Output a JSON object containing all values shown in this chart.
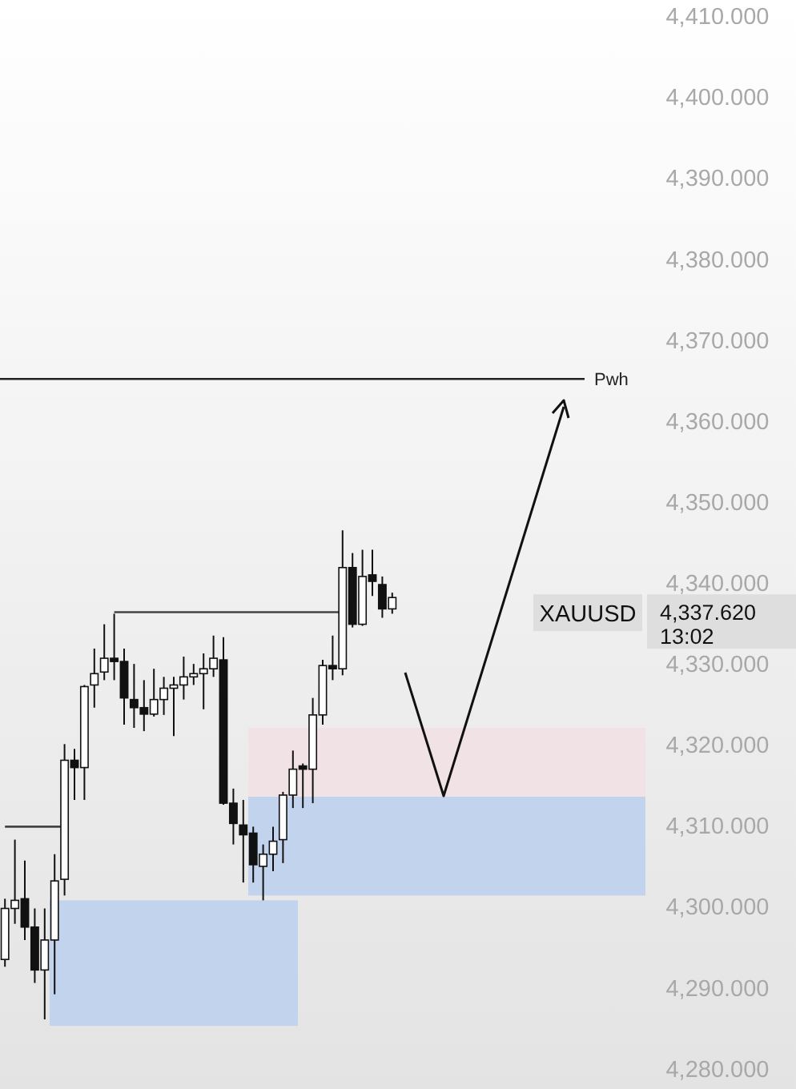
{
  "chart_data": {
    "type": "candlestick",
    "categories": [
      null,
      null,
      null,
      null,
      null,
      null,
      null,
      null,
      null,
      null,
      null,
      null,
      null,
      null,
      null,
      null,
      null,
      null,
      null,
      null,
      null,
      null,
      null,
      null,
      null,
      null,
      null,
      null,
      null,
      null,
      null,
      null,
      null,
      null,
      null,
      null,
      null,
      null,
      null,
      null,
      null,
      null,
      null,
      null,
      null,
      null,
      null,
      null,
      null,
      null,
      null,
      null,
      null,
      null,
      null,
      null,
      null,
      null,
      null,
      null,
      null,
      null,
      null,
      null,
      null
    ],
    "ohlc": [
      [
        4293.5,
        4301.0,
        4292.6,
        4299.8
      ],
      [
        4299.8,
        4308.3,
        4297.9,
        4300.8
      ],
      [
        4301.0,
        4305.7,
        4295.9,
        4297.5
      ],
      [
        4297.5,
        4299.8,
        4290.6,
        4292.2
      ],
      [
        4292.2,
        4299.8,
        4286.1,
        4295.9
      ],
      [
        4295.9,
        4306.5,
        4289.2,
        4303.2
      ],
      [
        4303.4,
        4320.1,
        4301.4,
        4318.1
      ],
      [
        4318.1,
        4319.5,
        4313.2,
        4317.2
      ],
      [
        4317.2,
        4327.4,
        4313.2,
        4327.2
      ],
      [
        4327.4,
        4331.9,
        4324.6,
        4328.8
      ],
      [
        4329.0,
        4334.9,
        4328.0,
        4330.7
      ],
      [
        4330.7,
        4336.2,
        4328.0,
        4330.3
      ],
      [
        4330.3,
        4331.9,
        4322.5,
        4325.8
      ],
      [
        4325.6,
        4330.0,
        4322.1,
        4324.6
      ],
      [
        4324.6,
        4328.0,
        4321.7,
        4323.8
      ],
      [
        4323.8,
        4329.4,
        4323.5,
        4325.6
      ],
      [
        4325.6,
        4328.4,
        4323.7,
        4327.0
      ],
      [
        4327.0,
        4328.4,
        4321.1,
        4327.4
      ],
      [
        4327.4,
        4330.9,
        4325.6,
        4328.4
      ],
      [
        4328.4,
        4330.0,
        4327.4,
        4328.8
      ],
      [
        4328.8,
        4331.3,
        4324.4,
        4329.4
      ],
      [
        4329.4,
        4333.5,
        4328.4,
        4330.7
      ],
      [
        4330.5,
        4333.3,
        4312.6,
        4312.8
      ],
      [
        4312.8,
        4314.6,
        4307.7,
        4310.3
      ],
      [
        4310.1,
        4313.2,
        4303.0,
        4308.9
      ],
      [
        4309.1,
        4309.9,
        4303.0,
        4305.2
      ],
      [
        4305.0,
        4307.7,
        4300.8,
        4306.5
      ],
      [
        4306.5,
        4309.9,
        4304.4,
        4308.1
      ],
      [
        4308.3,
        4314.2,
        4305.4,
        4313.8
      ],
      [
        4313.8,
        4319.3,
        4312.2,
        4317.0
      ],
      [
        4317.4,
        4317.7,
        4312.2,
        4317.0
      ],
      [
        4317.0,
        4325.8,
        4312.8,
        4323.7
      ],
      [
        4323.7,
        4330.5,
        4322.5,
        4329.8
      ],
      [
        4329.8,
        4333.5,
        4328.0,
        4329.4
      ],
      [
        4329.4,
        4346.5,
        4328.6,
        4341.9
      ],
      [
        4341.9,
        4343.7,
        4334.5,
        4334.9
      ],
      [
        4334.9,
        4344.1,
        4334.7,
        4340.8
      ],
      [
        4341.0,
        4344.1,
        4338.4,
        4340.2
      ],
      [
        4339.8,
        4340.8,
        4335.7,
        4336.8
      ],
      [
        4336.8,
        4338.8,
        4336.2,
        4338.2
      ],
      null,
      null,
      null,
      null,
      null,
      null,
      null,
      null,
      null,
      null,
      null,
      null,
      null,
      null,
      null,
      null,
      null,
      null,
      null,
      null,
      null,
      null,
      null,
      null,
      null
    ],
    "series": [
      {
        "type": "line",
        "color": "#444444",
        "values": [
          4309.9,
          4309.9,
          4309.9,
          4309.9,
          4309.9,
          4309.9,
          4309.9,
          null,
          null,
          null,
          null,
          null,
          null,
          null,
          null,
          null,
          null,
          null,
          null,
          null,
          null,
          null,
          null,
          null,
          null,
          null,
          null,
          null,
          null,
          null,
          null,
          null,
          null,
          null,
          null,
          null,
          null,
          null,
          null,
          null,
          null,
          null,
          null,
          null,
          null,
          null,
          null,
          null,
          null,
          null,
          null,
          null,
          null,
          null,
          null,
          null,
          null,
          null,
          null,
          null,
          null,
          null,
          null,
          null,
          null
        ]
      },
      {
        "type": "line",
        "color": "#444444",
        "values": [
          null,
          null,
          null,
          null,
          null,
          null,
          null,
          null,
          null,
          null,
          null,
          4336.4,
          4336.4,
          4336.4,
          4336.4,
          4336.4,
          4336.4,
          4336.4,
          4336.4,
          4336.4,
          4336.4,
          4336.4,
          4336.4,
          4336.4,
          4336.4,
          4336.4,
          4336.4,
          4336.4,
          4336.4,
          4336.4,
          4336.4,
          4336.4,
          4336.4,
          4336.4,
          4336.4,
          null,
          null,
          null,
          null,
          null,
          null,
          null,
          null,
          null,
          null,
          null,
          null,
          null,
          null,
          null,
          null,
          null,
          null,
          null,
          null,
          null,
          null,
          null,
          null,
          null,
          null,
          null,
          null,
          null,
          null
        ]
      }
    ],
    "ylim": [
      4277.5,
      4412
    ],
    "yticks": [
      {
        "value": 4280,
        "label": "4,280.000"
      },
      {
        "value": 4290,
        "label": "4,290.000"
      },
      {
        "value": 4300,
        "label": "4,300.000"
      },
      {
        "value": 4310,
        "label": "4,310.000"
      },
      {
        "value": 4320,
        "label": "4,320.000"
      },
      {
        "value": 4330,
        "label": "4,330.000"
      },
      {
        "value": 4340,
        "label": "4,340.000"
      },
      {
        "value": 4350,
        "label": "4,350.000"
      },
      {
        "value": 4360,
        "label": "4,360.000"
      },
      {
        "value": 4370,
        "label": "4,370.000"
      },
      {
        "value": 4380,
        "label": "4,380.000"
      },
      {
        "value": 4390,
        "label": "4,390.000"
      },
      {
        "value": 4400,
        "label": "4,400.000"
      },
      {
        "value": 4410,
        "label": "4,410.000"
      }
    ],
    "ref_lines": [
      {
        "axis": "y",
        "value": 4365.2,
        "label": "Pwh",
        "color": "#222222"
      }
    ],
    "bands": [
      {
        "axis": "y",
        "from": 4285.3,
        "to": 4300.8,
        "color": "#c2d3ee"
      },
      {
        "axis": "y",
        "from": 4301.4,
        "to": 4313.6,
        "color": "#c2d3ee"
      },
      {
        "axis": "y",
        "from": 4313.6,
        "to": 4322.1,
        "color": "#f1e2e6"
      }
    ],
    "annotations": [
      "XAUUSD",
      "4,337.620",
      "13:02"
    ]
  }
}
